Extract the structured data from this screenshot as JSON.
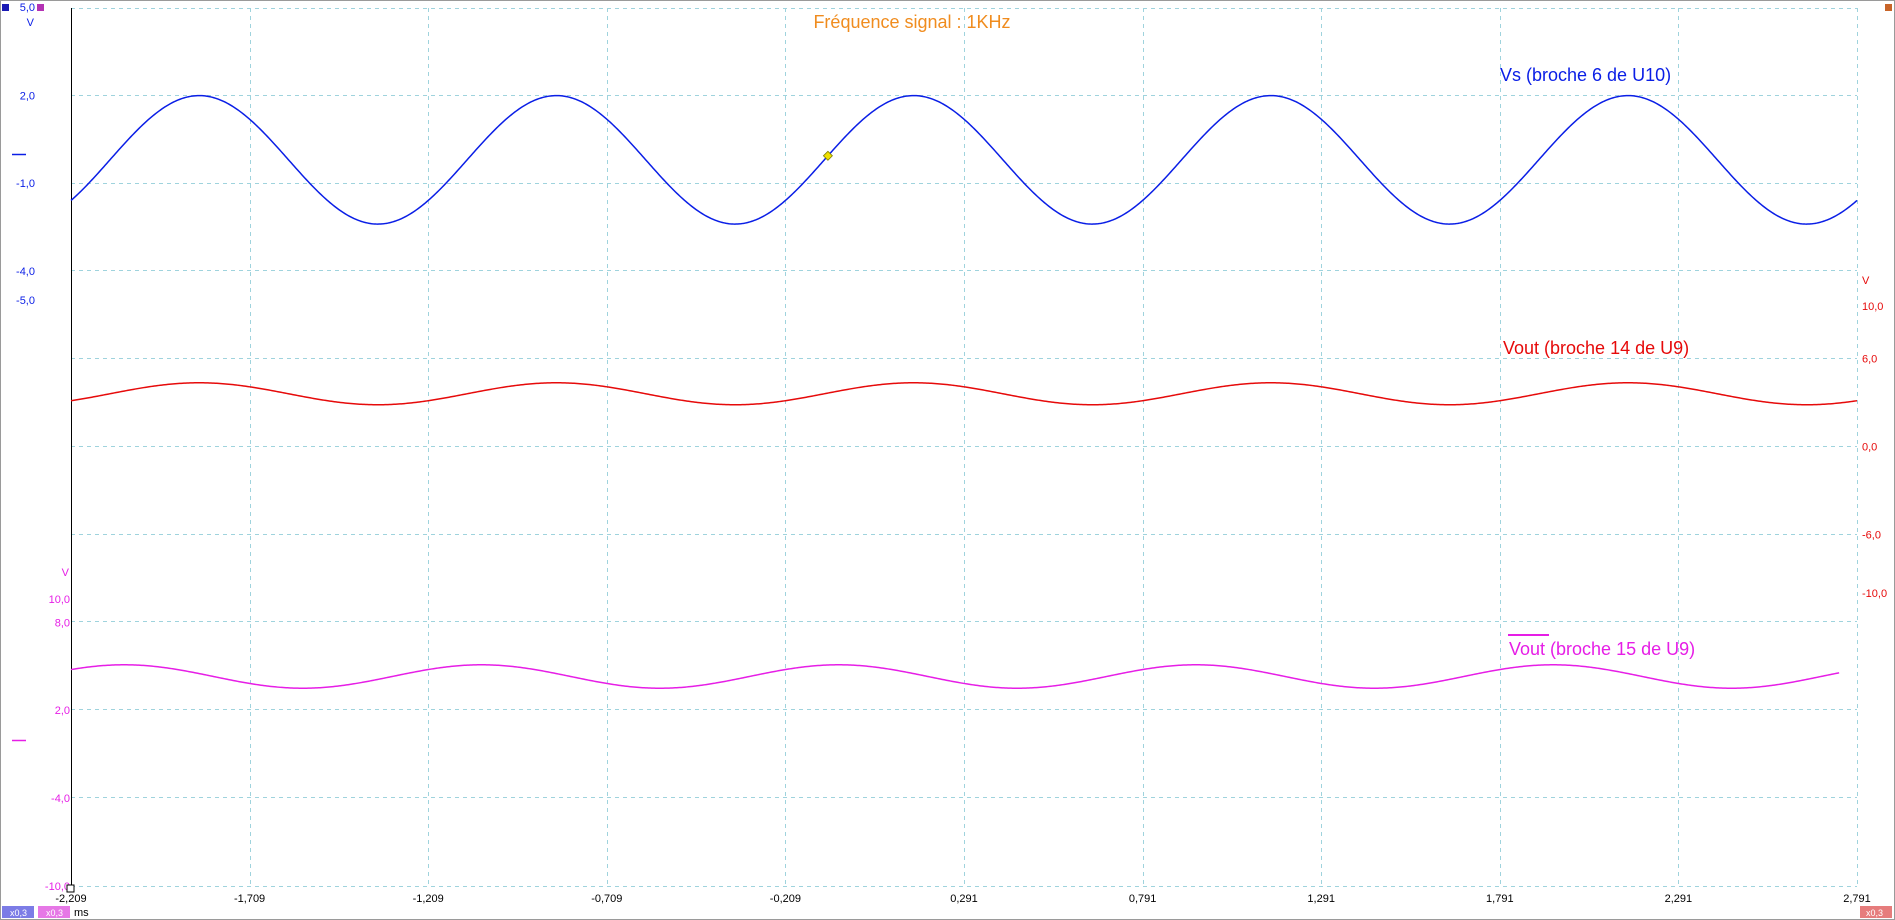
{
  "title": "Fréquence signal : 1KHz",
  "colors": {
    "title": "#f08c1e",
    "ch1": "#0a1ee6",
    "ch2": "#e60a0a",
    "ch3": "#e61ee6",
    "grid": "#9fd3dd",
    "cursor": "#f0e000"
  },
  "x_axis": {
    "unit": "ms",
    "range": [
      -2.209,
      2.791
    ],
    "tick_values": [
      -2.209,
      -1.709,
      -1.209,
      -0.709,
      -0.209,
      0.291,
      0.791,
      1.291,
      1.791,
      2.291,
      2.791
    ],
    "tick_labels": [
      "-2,209",
      "-1,709",
      "-1,209",
      "-0,709",
      "-0,209",
      "0,291",
      "0,791",
      "1,291",
      "1,791",
      "2,291",
      "2,791"
    ]
  },
  "chart_data": {
    "type": "line",
    "title": "Fréquence signal : 1KHz",
    "xlabel": "ms",
    "xlim": [
      -2.209,
      2.791
    ],
    "grid": true,
    "series": [
      {
        "name": "Vs (broche 6 de U10)",
        "color": "#0a1ee6",
        "unit": "V",
        "scale_label": "5,0",
        "ylim": [
          -5.0,
          5.0
        ],
        "ticks": [
          {
            "value": 5.0,
            "label": "5,0"
          },
          {
            "value": 2.0,
            "label": "2,0"
          },
          {
            "value": -1.0,
            "label": "-1,0"
          },
          {
            "value": -4.0,
            "label": "-4,0"
          },
          {
            "value": -5.0,
            "label": "-5,0"
          }
        ],
        "zero_marker_value": 0.0,
        "signal": {
          "shape": "sine",
          "frequency_khz": 1.0,
          "amplitude": 2.2,
          "offset": -0.2,
          "peak_time_ms": -1.85
        }
      },
      {
        "name": "Vout (broche 14 de U9)",
        "color": "#e60a0a",
        "unit": "V",
        "ylim": [
          -10.0,
          10.0
        ],
        "ticks": [
          {
            "value": 10.0,
            "label": "10,0"
          },
          {
            "value": 6.0,
            "label": "6,0"
          },
          {
            "value": 0.0,
            "label": "0,0"
          },
          {
            "value": -6.0,
            "label": "-6,0"
          },
          {
            "value": -10.0,
            "label": "-10,0"
          }
        ],
        "signal": {
          "shape": "sine",
          "frequency_khz": 1.0,
          "amplitude": 0.75,
          "offset": 3.6,
          "peak_time_ms": -1.85
        }
      },
      {
        "name": "Vout (broche 15 de U9)",
        "name_overline": true,
        "color": "#e61ee6",
        "unit": "V",
        "ylim": [
          -10.0,
          10.0
        ],
        "ticks": [
          {
            "value": 10.0,
            "label": "10,0"
          },
          {
            "value": 8.0,
            "label": "8,0"
          },
          {
            "value": 2.0,
            "label": "2,0"
          },
          {
            "value": -4.0,
            "label": "-4,0"
          },
          {
            "value": -10.0,
            "label": "-10,0"
          }
        ],
        "zero_marker_value": 0.0,
        "signal": {
          "shape": "sine",
          "frequency_khz": 1.0,
          "amplitude": 0.8,
          "offset": 4.3,
          "peak_time_ms": -2.06
        }
      }
    ],
    "cursor_marker": {
      "x": -0.09,
      "series": 0
    }
  },
  "badges": {
    "ch1_gain": "x0,3",
    "ch3_gain": "x0,3",
    "ch2_gain": "x0,3"
  }
}
